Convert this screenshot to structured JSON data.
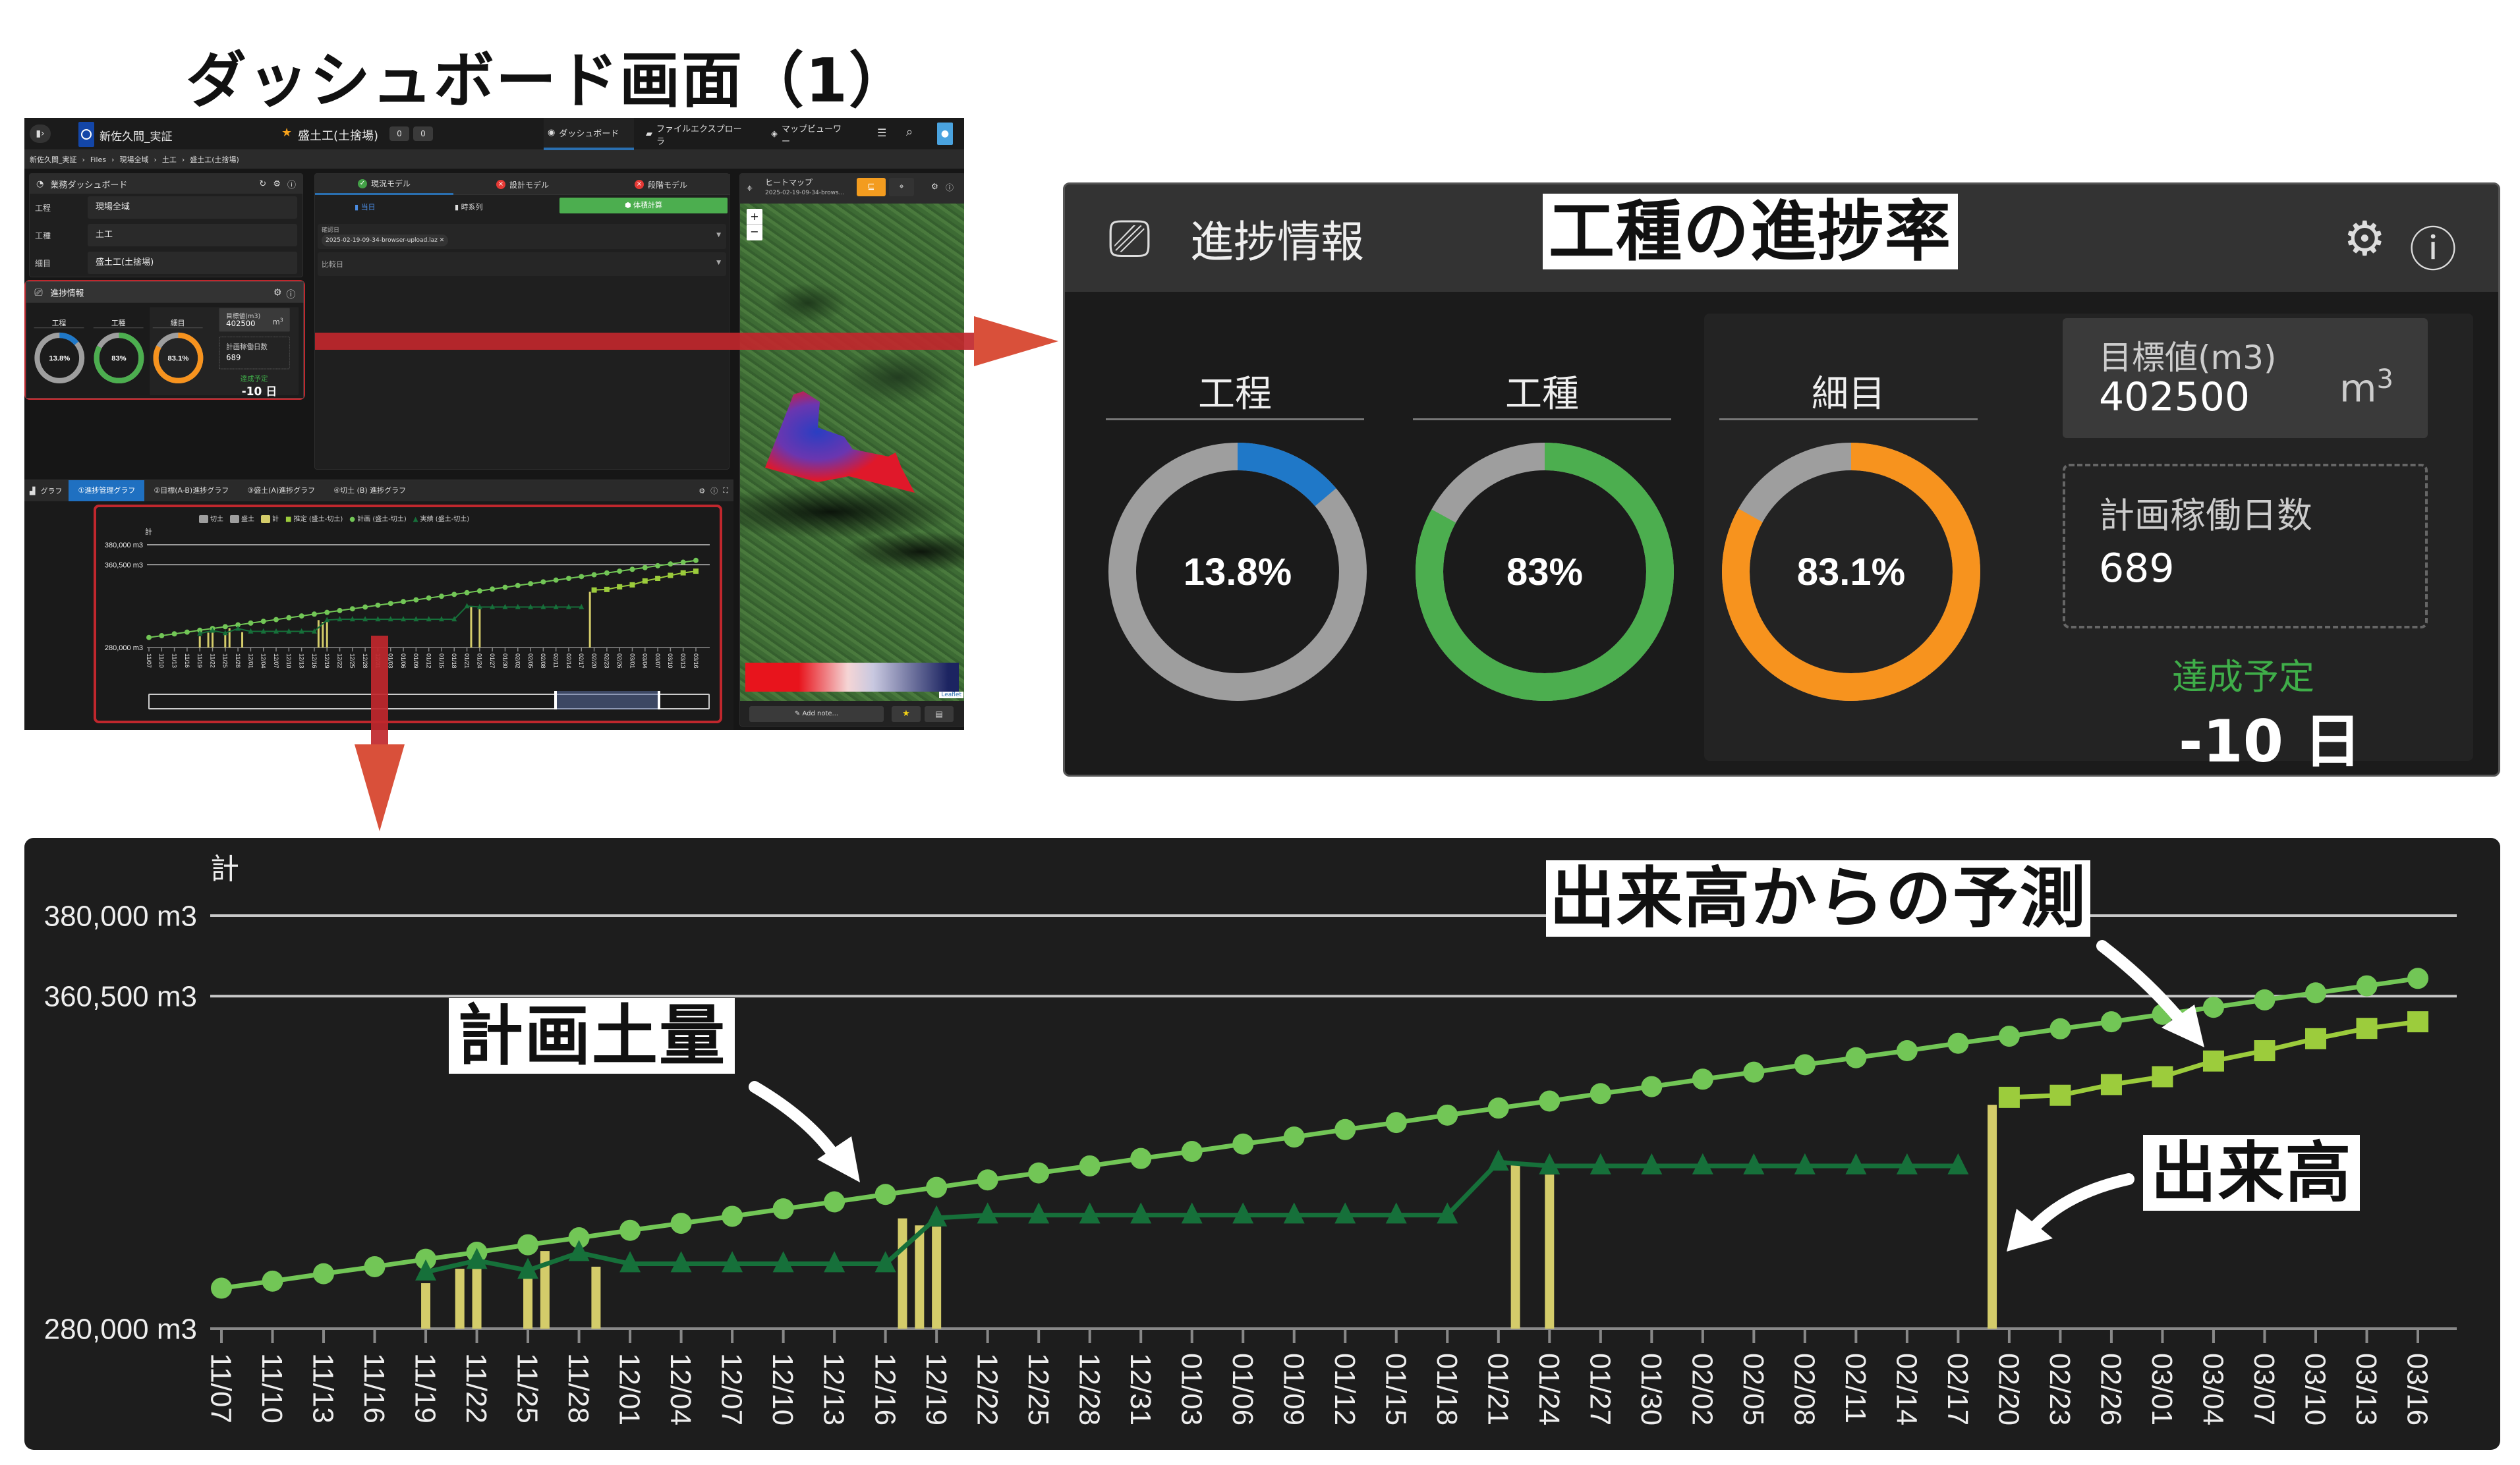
{
  "page_title": "ダッシュボード画面（1）",
  "app": {
    "project": "新佐久間_実証",
    "current_item": "盛土工(土捨場)",
    "badges": [
      "0",
      "0"
    ],
    "nav_tabs": [
      {
        "label": "ダッシュボード",
        "icon": "dashboard-icon",
        "active": true
      },
      {
        "label": "ファイルエクスプローラ",
        "icon": "folder-icon"
      },
      {
        "label": "マップビューワー",
        "icon": "map-icon"
      }
    ],
    "breadcrumb": [
      "新佐久間_実証",
      "Files",
      "現場全域",
      "土工",
      "盛土工(土捨場)"
    ],
    "accent": "#2a6fb0"
  },
  "business_dashboard": {
    "title": "業務ダッシュボード",
    "rows": [
      {
        "label": "工程",
        "value": "現場全域"
      },
      {
        "label": "工種",
        "value": "土工"
      },
      {
        "label": "細目",
        "value": "盛土工(土捨場)"
      }
    ]
  },
  "model_panel": {
    "tabs": [
      {
        "label": "現況モデル",
        "status": "ok",
        "color": "#43a047"
      },
      {
        "label": "設計モデル",
        "status": "error",
        "color": "#e53935"
      },
      {
        "label": "段階モデル",
        "status": "error",
        "color": "#e53935"
      }
    ],
    "sub_tabs": [
      "当日",
      "時系列",
      "体積計算"
    ],
    "confirm_date": {
      "label": "確認日",
      "chip": "2025-02-19-09-34-browser-upload.laz"
    },
    "compare_date": {
      "label": "比較日"
    }
  },
  "heatmap": {
    "title": "ヒートマップ",
    "subtitle": "2025-02-19-09-34-brows...",
    "zoom_in": "+",
    "zoom_out": "−",
    "attribution": "Leaflet",
    "add_note": "Add note...",
    "legend_colors": [
      "#e8141c",
      "#ffffff",
      "#1c2461"
    ]
  },
  "progress": {
    "title": "進捗情報",
    "donuts": [
      {
        "label": "工程",
        "text": "13.8%",
        "value": 13.8,
        "color": "#1f78c8"
      },
      {
        "label": "工種",
        "text": "83%",
        "value": 83,
        "color": "#4cae4f"
      },
      {
        "label": "細目",
        "text": "83.1%",
        "value": 83.1,
        "color": "#f7931e"
      }
    ],
    "track_color": "#9e9e9e",
    "target": {
      "label": "目標値(m3)",
      "value": "402500",
      "unit": "m",
      "unit_sup": "3"
    },
    "planned_days": {
      "label": "計画稼働日数",
      "value": "689"
    },
    "completion": {
      "label": "達成予定",
      "value": "-10 日",
      "color": "#3fae49"
    }
  },
  "graph_panel": {
    "title": "グラフ",
    "tabs": [
      "①進捗管理グラフ",
      "②目標(A-B)進捗グラフ",
      "③盛土(A)進捗グラフ",
      "④切土 (B) 進捗グラフ"
    ],
    "legend": [
      {
        "label": "切土",
        "color": "#9e9e9e",
        "shape": "box"
      },
      {
        "label": "盛土",
        "color": "#9e9e9e",
        "shape": "box"
      },
      {
        "label": "計",
        "color": "#d4cc6a",
        "shape": "box"
      },
      {
        "label": "推定 (盛土-切土)",
        "color": "#9ccc3c",
        "shape": "square"
      },
      {
        "label": "計画 (盛土-切土)",
        "color": "#72c656",
        "shape": "circle"
      },
      {
        "label": "実績 (盛土-切土)",
        "color": "#16703a",
        "shape": "triangle"
      }
    ]
  },
  "callouts": {
    "progress_rate": "工種の進捗率",
    "planned_volume": "計画土量",
    "forecast": "出来高からの予測",
    "actual": "出来高"
  },
  "chart_data": {
    "type": "line",
    "ylabel": "計",
    "ylim": [
      280000,
      380000
    ],
    "y_ticks": [
      {
        "value": 280000,
        "label": "280,000 m3"
      },
      {
        "value": 360500,
        "label": "360,500 m3"
      },
      {
        "value": 380000,
        "label": "380,000 m3"
      }
    ],
    "grid": true,
    "x": [
      "11/07",
      "11/10",
      "11/13",
      "11/16",
      "11/19",
      "11/22",
      "11/25",
      "11/28",
      "12/01",
      "12/04",
      "12/07",
      "12/10",
      "12/13",
      "12/16",
      "12/19",
      "12/22",
      "12/25",
      "12/28",
      "12/31",
      "01/03",
      "01/06",
      "01/09",
      "01/12",
      "01/15",
      "01/18",
      "01/21",
      "01/24",
      "01/27",
      "01/30",
      "02/02",
      "02/05",
      "02/08",
      "02/11",
      "02/14",
      "02/17",
      "02/20",
      "02/23",
      "02/26",
      "03/01",
      "03/04",
      "03/07",
      "03/10",
      "03/13",
      "03/16"
    ],
    "series": [
      {
        "name": "計画 (盛土-切土)",
        "type": "line",
        "marker": "circle",
        "color": "#72c656",
        "values": [
          289800,
          291500,
          293300,
          295000,
          296800,
          298500,
          300300,
          302000,
          303800,
          305500,
          307200,
          309000,
          310700,
          312500,
          314200,
          316000,
          317700,
          319400,
          321200,
          322900,
          324700,
          326400,
          328200,
          329900,
          331700,
          333400,
          335100,
          336900,
          338600,
          340400,
          342100,
          343900,
          345600,
          347300,
          349100,
          350800,
          352600,
          354300,
          356100,
          357800,
          359600,
          361300,
          363000,
          364800
        ]
      },
      {
        "name": "実績 (盛土-切土)",
        "type": "line",
        "marker": "triangle",
        "color": "#16703a",
        "values": [
          null,
          null,
          null,
          null,
          293700,
          296500,
          294100,
          298400,
          295700,
          295700,
          295700,
          295700,
          295700,
          295700,
          306800,
          307500,
          307500,
          307500,
          307500,
          307500,
          307500,
          307500,
          307500,
          307500,
          307500,
          320300,
          319400,
          319400,
          319400,
          319400,
          319400,
          319400,
          319400,
          319400,
          319400,
          null,
          null,
          null,
          null,
          null,
          null,
          null,
          null,
          null
        ]
      },
      {
        "name": "推定 (盛土-切土)",
        "type": "line",
        "marker": "square",
        "color": "#9ccc3c",
        "values": [
          null,
          null,
          null,
          null,
          null,
          null,
          null,
          null,
          null,
          null,
          null,
          null,
          null,
          null,
          null,
          null,
          null,
          null,
          null,
          null,
          null,
          null,
          null,
          null,
          null,
          null,
          null,
          null,
          null,
          null,
          null,
          null,
          null,
          null,
          null,
          336000,
          336500,
          339100,
          341000,
          344800,
          347300,
          350200,
          352700,
          354300
        ]
      },
      {
        "name": "計",
        "type": "bar",
        "color": "#d4cc6a",
        "points": [
          {
            "date": "11/19",
            "value": 291000
          },
          {
            "date": "11/21",
            "value": 294500
          },
          {
            "date": "11/22",
            "value": 294500
          },
          {
            "date": "11/25",
            "value": 293000
          },
          {
            "date": "11/26",
            "value": 298800
          },
          {
            "date": "11/29",
            "value": 295000
          },
          {
            "date": "12/17",
            "value": 306700
          },
          {
            "date": "12/18",
            "value": 305000
          },
          {
            "date": "12/19",
            "value": 304700
          },
          {
            "date": "01/22",
            "value": 320400
          },
          {
            "date": "01/24",
            "value": 317300
          },
          {
            "date": "02/19",
            "value": 334200
          }
        ]
      }
    ]
  }
}
